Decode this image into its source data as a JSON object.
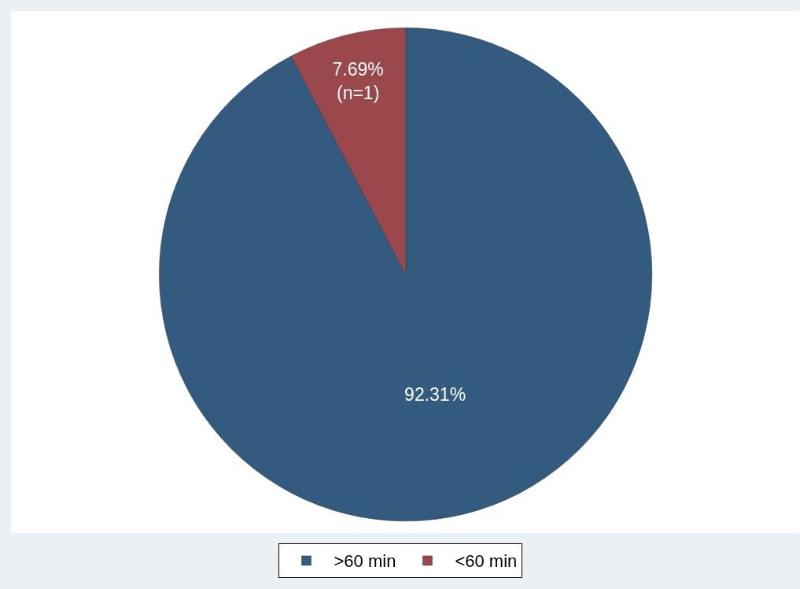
{
  "chart_data": {
    "type": "pie",
    "categories": [
      ">60 min",
      "<60 min"
    ],
    "values": [
      92.31,
      7.69
    ],
    "colors": [
      "#335a7f",
      "#9a484c"
    ],
    "value_labels": [
      "92.31%",
      "7.69%\n(n=1)"
    ],
    "legend": "bottom"
  }
}
